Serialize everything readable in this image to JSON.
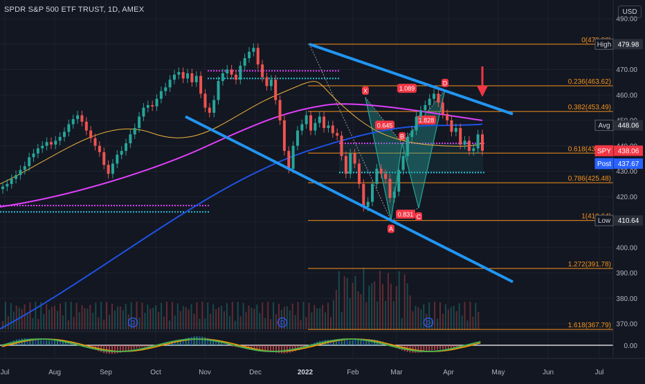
{
  "header": {
    "title": "SPDR S&P 500 ETF TRUST, 1D, AMEX",
    "currency": "USD"
  },
  "colors": {
    "background": "#131722",
    "grid": "#1e222d",
    "up": "#26a69a",
    "down": "#ef5350",
    "channel": "#2196f3",
    "ma_pink": "#e040fb",
    "ma_blue": "#1e53e5",
    "ma_yellow": "#f0b43c",
    "fib": "#f7931a",
    "pattern_fill": "#26a69a"
  },
  "chart_data": {
    "type": "candlestick",
    "title": "SPDR S&P 500 ETF TRUST, 1D, AMEX",
    "x_ticks": [
      "Jul",
      "Aug",
      "Sep",
      "Oct",
      "Nov",
      "Dec",
      "2022",
      "Feb",
      "Mar",
      "Apr",
      "May",
      "Jun",
      "Jul"
    ],
    "y_ticks": [
      370.0,
      380.0,
      390.0,
      400.0,
      410.0,
      420.0,
      430.0,
      440.0,
      450.0,
      460.0,
      470.0,
      480.0,
      490.0
    ],
    "ylim": [
      365,
      495
    ],
    "price_labels": [
      {
        "label": "High",
        "value": "479.98"
      },
      {
        "label": "Avg",
        "value": "448.06"
      },
      {
        "label": "SPY",
        "value": "438.06"
      },
      {
        "label": "Post",
        "value": "437.67"
      },
      {
        "label": "Low",
        "value": "410.64"
      }
    ],
    "fib_levels": [
      {
        "label": "0(479.98)",
        "value": 479.98
      },
      {
        "label": "0.236(463.62)",
        "value": 463.62
      },
      {
        "label": "0.382(453.49)",
        "value": 453.49
      },
      {
        "label": "0.618(437.13)",
        "value": 437.13
      },
      {
        "label": "0.786(425.48)",
        "value": 425.48
      },
      {
        "label": "1(410.64)",
        "value": 410.64
      },
      {
        "label": "1.272(391.78)",
        "value": 391.78
      },
      {
        "label": "1.618(367.79)",
        "value": 367.79
      }
    ],
    "pattern_points": [
      {
        "label": "X",
        "value": 459.0
      },
      {
        "label": "A",
        "value": 410.64
      },
      {
        "label": "B",
        "value": 441.0
      },
      {
        "label": "C",
        "value": 415.5
      },
      {
        "label": "D",
        "value": 462.0
      }
    ],
    "pattern_ratios": [
      "0.645",
      "0.831",
      "1.828",
      "1.089"
    ],
    "dividend_markers": [
      "D",
      "D",
      "D"
    ],
    "oscillator_zero": "0.00",
    "closes": [
      424.0,
      425.0,
      427.0,
      428.5,
      430.5,
      432.0,
      435.5,
      437.0,
      439.0,
      440.0,
      441.5,
      440.5,
      442.0,
      443.5,
      445.5,
      448.5,
      450.5,
      452.0,
      449.5,
      446.0,
      443.0,
      440.0,
      437.5,
      432.5,
      429.0,
      433.0,
      436.5,
      438.0,
      441.0,
      444.5,
      447.0,
      451.5,
      455.0,
      456.0,
      455.5,
      458.5,
      461.5,
      463.0,
      466.0,
      468.0,
      469.0,
      466.5,
      468.5,
      465.0,
      467.5,
      460.5,
      455.0,
      453.0,
      458.0,
      465.5,
      468.5,
      470.0,
      468.0,
      466.0,
      471.5,
      474.5,
      477.0,
      478.5,
      472.0,
      467.0,
      463.5,
      466.0,
      458.0,
      450.0,
      438.0,
      431.0,
      440.0,
      446.0,
      448.5,
      452.0,
      446.0,
      449.0,
      451.5,
      447.0,
      448.0,
      445.0,
      444.0,
      436.0,
      429.0,
      437.0,
      433.0,
      425.0,
      416.0,
      418.0,
      425.0,
      431.0,
      429.0,
      427.0,
      419.5,
      422.0,
      430.5,
      436.0,
      443.5,
      446.0,
      451.5,
      454.0,
      456.0,
      458.5,
      460.5,
      457.0,
      452.5,
      450.0,
      445.5,
      447.0,
      440.5,
      442.0,
      438.0,
      439.0,
      444.5,
      438.06
    ]
  }
}
